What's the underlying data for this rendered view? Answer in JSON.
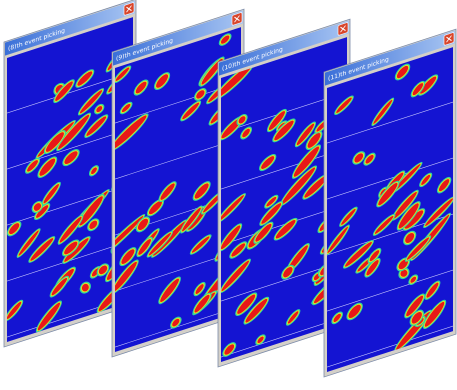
{
  "windows": [
    {
      "title": "(8)th event picking"
    },
    {
      "title": "(9)th event picking"
    },
    {
      "title": "(10)th event picking"
    },
    {
      "title": "(11)th event picking"
    }
  ]
}
